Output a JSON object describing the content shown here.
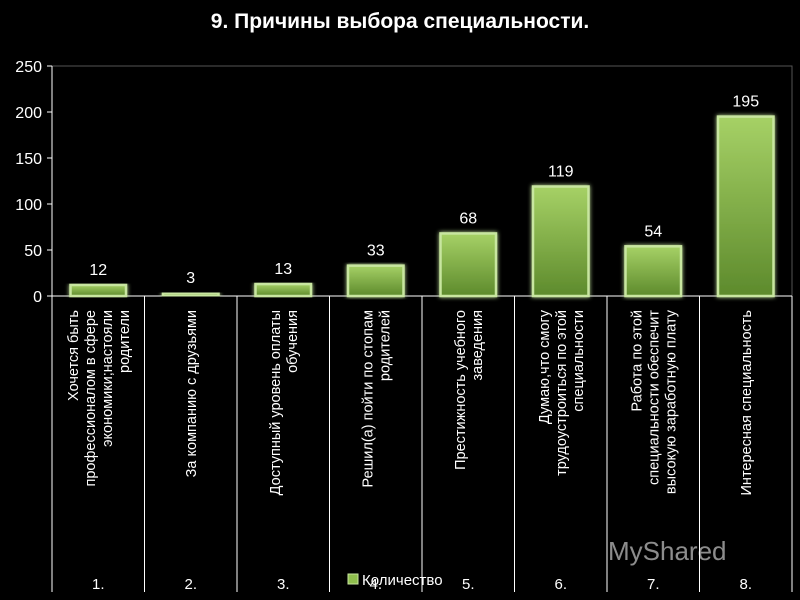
{
  "chart_data": {
    "type": "bar",
    "title": "9. Причины выбора специальности.",
    "categories": [
      "Хочется быть профессионалом в сфере экономики;настояли родители",
      "За компанию с друзьями",
      "Доступный уровень оплаты обучения",
      "Решил(а) пойти по стопам родителей",
      "Престижность учебного заведения",
      "Думаю,что смогу трудоустроиться по этой специальности",
      "Работа по этой специальности обеспечит высокую заработную плату",
      "Интересная специальность"
    ],
    "category_numbers": [
      "1.",
      "2.",
      "3.",
      "4.",
      "5.",
      "6.",
      "7.",
      "8."
    ],
    "series": [
      {
        "name": "Количество",
        "values": [
          12,
          3,
          13,
          33,
          68,
          119,
          54,
          195
        ]
      }
    ],
    "data_labels": [
      "12",
      "3",
      "13",
      "33",
      "68",
      "119",
      "54",
      "195"
    ],
    "ylim": [
      0,
      250
    ],
    "yticks": [
      0,
      50,
      100,
      150,
      200,
      250
    ],
    "grid": false,
    "legend": "bottom",
    "colors": {
      "bar_fill": "#8fbf4d",
      "bar_border": "#c8e6a0",
      "axis": "#ffffff",
      "background": "#000000"
    }
  }
}
